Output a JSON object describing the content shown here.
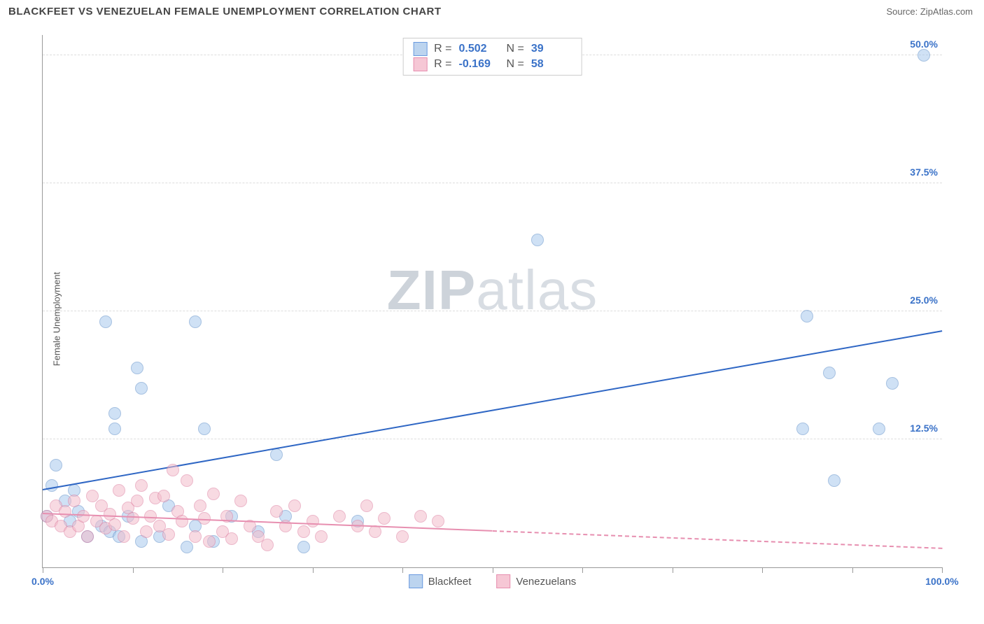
{
  "title": "BLACKFEET VS VENEZUELAN FEMALE UNEMPLOYMENT CORRELATION CHART",
  "source": "Source: ZipAtlas.com",
  "ylabel": "Female Unemployment",
  "watermark": {
    "left": "ZIP",
    "right": "atlas"
  },
  "legend_top": [
    {
      "swatch_fill": "#bcd4ef",
      "swatch_border": "#6a9adf",
      "r": "0.502",
      "n": "39"
    },
    {
      "swatch_fill": "#f6c7d5",
      "swatch_border": "#e78fb0",
      "r": "-0.169",
      "n": "58"
    }
  ],
  "legend_bottom": [
    {
      "swatch_fill": "#bcd4ef",
      "swatch_border": "#6a9adf",
      "label": "Blackfeet"
    },
    {
      "swatch_fill": "#f6c7d5",
      "swatch_border": "#e78fb0",
      "label": "Venezuelans"
    }
  ],
  "chart": {
    "type": "scatter",
    "xlim": [
      0,
      100
    ],
    "ylim": [
      0,
      52
    ],
    "background": "#ffffff",
    "ygrid": [
      12.5,
      25,
      37.5,
      50
    ],
    "ygrid_color": "#dddddd",
    "yticklabels": [
      {
        "v": 12.5,
        "label": "12.5%"
      },
      {
        "v": 25,
        "label": "25.0%"
      },
      {
        "v": 37.5,
        "label": "37.5%"
      },
      {
        "v": 50,
        "label": "50.0%"
      }
    ],
    "ytick_color": "#3a72c8",
    "xticks": [
      0,
      10,
      20,
      30,
      40,
      50,
      60,
      70,
      80,
      90,
      100
    ],
    "xticklabels": [
      {
        "v": 0,
        "label": "0.0%"
      },
      {
        "v": 100,
        "label": "100.0%"
      }
    ],
    "xtick_color": "#3a72c8",
    "marker_radius": 9,
    "marker_opacity": 0.55,
    "series": [
      {
        "name": "Blackfeet",
        "fill": "#a9c9ed",
        "stroke": "#5f8fc9",
        "points": [
          [
            98,
            50
          ],
          [
            55,
            32
          ],
          [
            7,
            24
          ],
          [
            17,
            24
          ],
          [
            85,
            24.5
          ],
          [
            10.5,
            19.5
          ],
          [
            11,
            17.5
          ],
          [
            8,
            15
          ],
          [
            8,
            13.5
          ],
          [
            18,
            13.5
          ],
          [
            84.5,
            13.5
          ],
          [
            93,
            13.5
          ],
          [
            87.5,
            19
          ],
          [
            94.5,
            18
          ],
          [
            88,
            8.5
          ],
          [
            26,
            11
          ],
          [
            1,
            8
          ],
          [
            2.5,
            6.5
          ],
          [
            4,
            5.5
          ],
          [
            5,
            3
          ],
          [
            3,
            4.5
          ],
          [
            6.5,
            4
          ],
          [
            7.5,
            3.5
          ],
          [
            8.5,
            3
          ],
          [
            9.5,
            5
          ],
          [
            11,
            2.5
          ],
          [
            13,
            3
          ],
          [
            14,
            6
          ],
          [
            16,
            2
          ],
          [
            17,
            4
          ],
          [
            19,
            2.5
          ],
          [
            21,
            5
          ],
          [
            24,
            3.5
          ],
          [
            27,
            5
          ],
          [
            29,
            2
          ],
          [
            35,
            4.5
          ],
          [
            1.5,
            10
          ],
          [
            3.5,
            7.5
          ],
          [
            0.5,
            5
          ]
        ],
        "trend": {
          "x0": 0,
          "y0": 7.5,
          "x1": 100,
          "y1": 23,
          "color": "#2e66c4",
          "width": 2.5,
          "solid_until": 100
        }
      },
      {
        "name": "Venezuelans",
        "fill": "#f3bccb",
        "stroke": "#de7fa0",
        "points": [
          [
            0.5,
            5
          ],
          [
            1,
            4.5
          ],
          [
            1.5,
            6
          ],
          [
            2,
            4
          ],
          [
            2.5,
            5.5
          ],
          [
            3,
            3.5
          ],
          [
            3.5,
            6.5
          ],
          [
            4,
            4
          ],
          [
            4.5,
            5
          ],
          [
            5,
            3
          ],
          [
            5.5,
            7
          ],
          [
            6,
            4.5
          ],
          [
            6.5,
            6
          ],
          [
            7,
            3.8
          ],
          [
            7.5,
            5.2
          ],
          [
            8,
            4.2
          ],
          [
            8.5,
            7.5
          ],
          [
            9,
            3
          ],
          [
            9.5,
            5.8
          ],
          [
            10,
            4.8
          ],
          [
            10.5,
            6.5
          ],
          [
            11,
            8
          ],
          [
            11.5,
            3.5
          ],
          [
            12,
            5
          ],
          [
            12.5,
            6.8
          ],
          [
            13,
            4
          ],
          [
            13.5,
            7
          ],
          [
            14,
            3.2
          ],
          [
            14.5,
            9.5
          ],
          [
            15,
            5.5
          ],
          [
            15.5,
            4.5
          ],
          [
            16,
            8.5
          ],
          [
            17,
            3
          ],
          [
            17.5,
            6
          ],
          [
            18,
            4.8
          ],
          [
            18.5,
            2.5
          ],
          [
            19,
            7.2
          ],
          [
            20,
            3.5
          ],
          [
            20.5,
            5
          ],
          [
            21,
            2.8
          ],
          [
            22,
            6.5
          ],
          [
            23,
            4
          ],
          [
            24,
            3
          ],
          [
            25,
            2.2
          ],
          [
            26,
            5.5
          ],
          [
            27,
            4
          ],
          [
            28,
            6
          ],
          [
            29,
            3.5
          ],
          [
            30,
            4.5
          ],
          [
            31,
            3
          ],
          [
            33,
            5
          ],
          [
            35,
            4
          ],
          [
            36,
            6
          ],
          [
            37,
            3.5
          ],
          [
            38,
            4.8
          ],
          [
            40,
            3
          ],
          [
            42,
            5
          ],
          [
            44,
            4.5
          ]
        ],
        "trend": {
          "x0": 0,
          "y0": 5.2,
          "x1": 100,
          "y1": 1.8,
          "color": "#e78fb0",
          "width": 2,
          "solid_until": 50
        }
      }
    ]
  }
}
